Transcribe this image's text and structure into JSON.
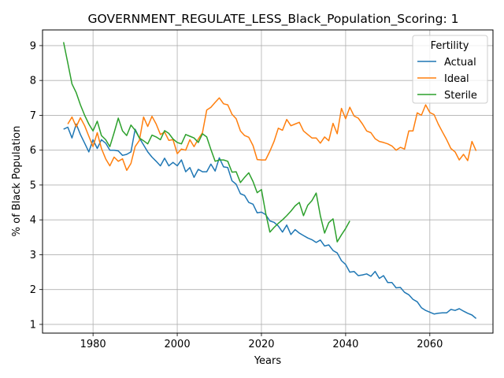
{
  "chart_data": {
    "type": "line",
    "title": "GOVERNMENT_REGULATE_LESS_Black_Population_Scoring: 1",
    "xlabel": "Years",
    "ylabel": "% of Black Population",
    "xlim": [
      1968,
      2075
    ],
    "ylim": [
      0.75,
      9.45
    ],
    "xticks": [
      1980,
      2000,
      2020,
      2040,
      2060
    ],
    "yticks": [
      1,
      2,
      3,
      4,
      5,
      6,
      7,
      8,
      9
    ],
    "grid": true,
    "legend": {
      "title": "Fertility",
      "position": "top-right"
    },
    "series": [
      {
        "name": "Actual",
        "color": "#1f77b4",
        "points": [
          [
            1973,
            6.6
          ],
          [
            1974,
            6.66
          ],
          [
            1975,
            6.35
          ],
          [
            1976,
            6.75
          ],
          [
            1977,
            6.45
          ],
          [
            1978,
            6.2
          ],
          [
            1979,
            5.95
          ],
          [
            1980,
            6.3
          ],
          [
            1981,
            6.05
          ],
          [
            1982,
            6.3
          ],
          [
            1983,
            6.2
          ],
          [
            1984,
            6.0
          ],
          [
            1985,
            6.0
          ],
          [
            1986,
            5.98
          ],
          [
            1987,
            5.85
          ],
          [
            1988,
            5.88
          ],
          [
            1989,
            5.95
          ],
          [
            1990,
            6.6
          ],
          [
            1991,
            6.35
          ],
          [
            1992,
            6.15
          ],
          [
            1993,
            5.95
          ],
          [
            1994,
            5.8
          ],
          [
            1995,
            5.68
          ],
          [
            1996,
            5.55
          ],
          [
            1997,
            5.77
          ],
          [
            1998,
            5.55
          ],
          [
            1999,
            5.65
          ],
          [
            2000,
            5.55
          ],
          [
            2001,
            5.72
          ],
          [
            2002,
            5.38
          ],
          [
            2003,
            5.5
          ],
          [
            2004,
            5.22
          ],
          [
            2005,
            5.45
          ],
          [
            2006,
            5.38
          ],
          [
            2007,
            5.38
          ],
          [
            2008,
            5.6
          ],
          [
            2009,
            5.4
          ],
          [
            2010,
            5.78
          ],
          [
            2011,
            5.52
          ],
          [
            2012,
            5.5
          ],
          [
            2013,
            5.12
          ],
          [
            2014,
            5.02
          ],
          [
            2015,
            4.75
          ],
          [
            2016,
            4.7
          ],
          [
            2017,
            4.5
          ],
          [
            2018,
            4.45
          ],
          [
            2019,
            4.2
          ],
          [
            2020,
            4.22
          ],
          [
            2021,
            4.15
          ],
          [
            2022,
            3.97
          ],
          [
            2023,
            3.93
          ],
          [
            2024,
            3.82
          ],
          [
            2025,
            3.65
          ],
          [
            2026,
            3.85
          ],
          [
            2027,
            3.58
          ],
          [
            2028,
            3.72
          ],
          [
            2029,
            3.62
          ],
          [
            2030,
            3.55
          ],
          [
            2031,
            3.48
          ],
          [
            2032,
            3.43
          ],
          [
            2033,
            3.35
          ],
          [
            2034,
            3.42
          ],
          [
            2035,
            3.25
          ],
          [
            2036,
            3.28
          ],
          [
            2037,
            3.12
          ],
          [
            2038,
            3.05
          ],
          [
            2039,
            2.83
          ],
          [
            2040,
            2.72
          ],
          [
            2041,
            2.5
          ],
          [
            2042,
            2.52
          ],
          [
            2043,
            2.4
          ],
          [
            2044,
            2.42
          ],
          [
            2045,
            2.45
          ],
          [
            2046,
            2.38
          ],
          [
            2047,
            2.52
          ],
          [
            2048,
            2.32
          ],
          [
            2049,
            2.4
          ],
          [
            2050,
            2.2
          ],
          [
            2051,
            2.2
          ],
          [
            2052,
            2.05
          ],
          [
            2053,
            2.06
          ],
          [
            2054,
            1.92
          ],
          [
            2055,
            1.85
          ],
          [
            2056,
            1.72
          ],
          [
            2057,
            1.65
          ],
          [
            2058,
            1.48
          ],
          [
            2059,
            1.4
          ],
          [
            2060,
            1.35
          ],
          [
            2061,
            1.3
          ],
          [
            2062,
            1.32
          ],
          [
            2063,
            1.33
          ],
          [
            2064,
            1.33
          ],
          [
            2065,
            1.43
          ],
          [
            2066,
            1.4
          ],
          [
            2067,
            1.45
          ],
          [
            2068,
            1.38
          ],
          [
            2069,
            1.32
          ],
          [
            2070,
            1.27
          ],
          [
            2071,
            1.17
          ]
        ]
      },
      {
        "name": "Ideal",
        "color": "#ff7f0e",
        "points": [
          [
            1974,
            6.75
          ],
          [
            1975,
            6.95
          ],
          [
            1976,
            6.67
          ],
          [
            1977,
            6.93
          ],
          [
            1978,
            6.7
          ],
          [
            1979,
            6.4
          ],
          [
            1980,
            6.1
          ],
          [
            1981,
            6.5
          ],
          [
            1982,
            6.05
          ],
          [
            1983,
            5.75
          ],
          [
            1984,
            5.55
          ],
          [
            1985,
            5.8
          ],
          [
            1986,
            5.68
          ],
          [
            1987,
            5.75
          ],
          [
            1988,
            5.42
          ],
          [
            1989,
            5.62
          ],
          [
            1990,
            6.1
          ],
          [
            1991,
            6.28
          ],
          [
            1992,
            6.95
          ],
          [
            1993,
            6.68
          ],
          [
            1994,
            6.97
          ],
          [
            1995,
            6.75
          ],
          [
            1996,
            6.45
          ],
          [
            1997,
            6.52
          ],
          [
            1998,
            6.28
          ],
          [
            1999,
            6.3
          ],
          [
            2000,
            5.9
          ],
          [
            2001,
            6.03
          ],
          [
            2002,
            6.0
          ],
          [
            2003,
            6.3
          ],
          [
            2004,
            6.1
          ],
          [
            2005,
            6.32
          ],
          [
            2006,
            6.5
          ],
          [
            2007,
            7.15
          ],
          [
            2008,
            7.23
          ],
          [
            2009,
            7.37
          ],
          [
            2010,
            7.5
          ],
          [
            2011,
            7.33
          ],
          [
            2012,
            7.3
          ],
          [
            2013,
            7.03
          ],
          [
            2014,
            6.9
          ],
          [
            2015,
            6.55
          ],
          [
            2016,
            6.42
          ],
          [
            2017,
            6.37
          ],
          [
            2018,
            6.13
          ],
          [
            2019,
            5.73
          ],
          [
            2020,
            5.72
          ],
          [
            2021,
            5.72
          ],
          [
            2022,
            5.97
          ],
          [
            2023,
            6.25
          ],
          [
            2024,
            6.63
          ],
          [
            2025,
            6.57
          ],
          [
            2026,
            6.88
          ],
          [
            2027,
            6.7
          ],
          [
            2028,
            6.75
          ],
          [
            2029,
            6.8
          ],
          [
            2030,
            6.55
          ],
          [
            2031,
            6.45
          ],
          [
            2032,
            6.35
          ],
          [
            2033,
            6.35
          ],
          [
            2034,
            6.2
          ],
          [
            2035,
            6.38
          ],
          [
            2036,
            6.27
          ],
          [
            2037,
            6.77
          ],
          [
            2038,
            6.47
          ],
          [
            2039,
            7.2
          ],
          [
            2040,
            6.9
          ],
          [
            2041,
            7.23
          ],
          [
            2042,
            6.98
          ],
          [
            2043,
            6.92
          ],
          [
            2044,
            6.75
          ],
          [
            2045,
            6.55
          ],
          [
            2046,
            6.5
          ],
          [
            2047,
            6.33
          ],
          [
            2048,
            6.25
          ],
          [
            2049,
            6.22
          ],
          [
            2050,
            6.18
          ],
          [
            2051,
            6.12
          ],
          [
            2052,
            6.0
          ],
          [
            2053,
            6.08
          ],
          [
            2054,
            6.03
          ],
          [
            2055,
            6.55
          ],
          [
            2056,
            6.55
          ],
          [
            2057,
            7.07
          ],
          [
            2058,
            7.0
          ],
          [
            2059,
            7.3
          ],
          [
            2060,
            7.08
          ],
          [
            2061,
            7.02
          ],
          [
            2062,
            6.75
          ],
          [
            2063,
            6.52
          ],
          [
            2064,
            6.3
          ],
          [
            2065,
            6.05
          ],
          [
            2066,
            5.95
          ],
          [
            2067,
            5.72
          ],
          [
            2068,
            5.88
          ],
          [
            2069,
            5.7
          ],
          [
            2070,
            6.25
          ],
          [
            2071,
            5.98
          ]
        ]
      },
      {
        "name": "Sterile",
        "color": "#2ca02c",
        "points": [
          [
            1973,
            9.1
          ],
          [
            1974,
            8.5
          ],
          [
            1975,
            7.9
          ],
          [
            1976,
            7.65
          ],
          [
            1977,
            7.3
          ],
          [
            1978,
            7.0
          ],
          [
            1979,
            6.75
          ],
          [
            1980,
            6.55
          ],
          [
            1981,
            6.83
          ],
          [
            1982,
            6.42
          ],
          [
            1983,
            6.3
          ],
          [
            1984,
            6.1
          ],
          [
            1985,
            6.5
          ],
          [
            1986,
            6.92
          ],
          [
            1987,
            6.55
          ],
          [
            1988,
            6.42
          ],
          [
            1989,
            6.72
          ],
          [
            1990,
            6.57
          ],
          [
            1991,
            6.35
          ],
          [
            1992,
            6.27
          ],
          [
            1993,
            6.18
          ],
          [
            1994,
            6.43
          ],
          [
            1995,
            6.38
          ],
          [
            1996,
            6.3
          ],
          [
            1997,
            6.56
          ],
          [
            1998,
            6.48
          ],
          [
            1999,
            6.32
          ],
          [
            2000,
            6.22
          ],
          [
            2001,
            6.18
          ],
          [
            2002,
            6.45
          ],
          [
            2003,
            6.4
          ],
          [
            2004,
            6.35
          ],
          [
            2005,
            6.22
          ],
          [
            2006,
            6.47
          ],
          [
            2007,
            6.38
          ],
          [
            2008,
            6.02
          ],
          [
            2009,
            5.68
          ],
          [
            2010,
            5.72
          ],
          [
            2011,
            5.72
          ],
          [
            2012,
            5.68
          ],
          [
            2013,
            5.37
          ],
          [
            2014,
            5.38
          ],
          [
            2015,
            5.07
          ],
          [
            2016,
            5.22
          ],
          [
            2017,
            5.35
          ],
          [
            2018,
            5.1
          ],
          [
            2019,
            4.78
          ],
          [
            2020,
            4.87
          ],
          [
            2021,
            4.2
          ],
          [
            2022,
            3.65
          ],
          [
            2023,
            3.78
          ],
          [
            2024,
            3.9
          ],
          [
            2025,
            4.0
          ],
          [
            2026,
            4.12
          ],
          [
            2027,
            4.25
          ],
          [
            2028,
            4.4
          ],
          [
            2029,
            4.5
          ],
          [
            2030,
            4.12
          ],
          [
            2031,
            4.42
          ],
          [
            2032,
            4.55
          ],
          [
            2033,
            4.77
          ],
          [
            2034,
            4.12
          ],
          [
            2035,
            3.62
          ],
          [
            2036,
            3.92
          ],
          [
            2037,
            4.03
          ],
          [
            2038,
            3.37
          ],
          [
            2039,
            3.57
          ],
          [
            2040,
            3.75
          ],
          [
            2041,
            3.97
          ]
        ]
      }
    ]
  }
}
